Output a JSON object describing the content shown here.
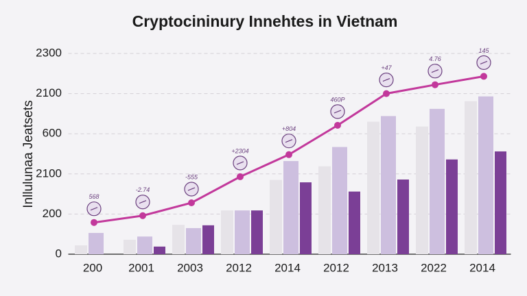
{
  "chart_data": {
    "type": "bar",
    "title": "Cryptocininury Innehtes in Vietnam",
    "y_label": "Inllulunaa Jeatsets",
    "categories": [
      "200",
      "2001",
      "2003",
      "2012",
      "2014",
      "2012",
      "2013",
      "2022",
      "2014"
    ],
    "series": [
      {
        "color": "#e6e3e8",
        "values": [
          22,
          36,
          73,
          109,
          185,
          219,
          330,
          318,
          381
        ]
      },
      {
        "color": "#cdbfdf",
        "values": [
          53,
          44,
          65,
          109,
          232,
          267,
          344,
          362,
          393
        ]
      },
      {
        "color": "#7b3f96",
        "values": [
          null,
          19,
          72,
          109,
          179,
          156,
          186,
          236,
          256
        ]
      },
      {
        "type": "line",
        "color": "#c2389b",
        "values": [
          79,
          96,
          128,
          193,
          248,
          321,
          400,
          422,
          443
        ]
      }
    ],
    "annotations": [
      "568",
      "-2.74",
      "-555",
      "+2304",
      "+804",
      "460P",
      "+47",
      "4.76",
      "145"
    ],
    "ylim": [
      0,
      500
    ],
    "yticks": [
      0,
      {
        "value": 100,
        "label": "200"
      },
      {
        "value": 200,
        "label": "2100"
      },
      {
        "value": 300,
        "label": "600"
      },
      {
        "value": 400,
        "label": "2100"
      },
      {
        "value": 500,
        "label": "2300"
      }
    ],
    "grid": true
  }
}
